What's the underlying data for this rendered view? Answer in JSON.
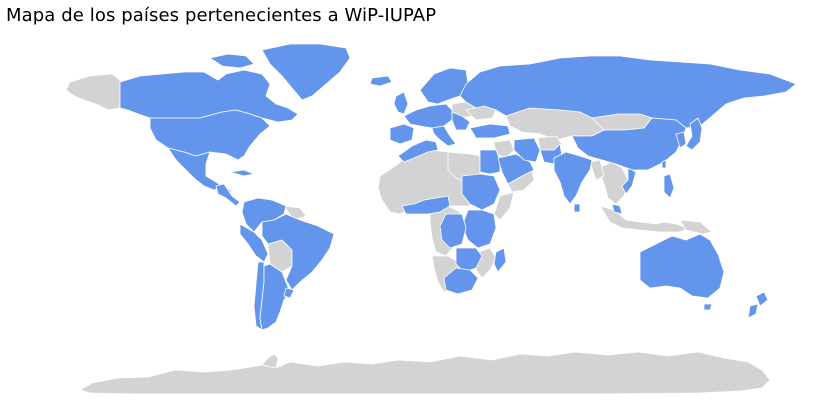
{
  "title": "Mapa de los países pertenecientes a WiP-IUPAP",
  "colors": {
    "member": "#6495ED",
    "non_member": "#D3D3D3",
    "border": "#FFFFFF",
    "background": "#FFFFFF"
  },
  "legend": "none",
  "map_data": {
    "type": "choropleth-world",
    "categories": [
      "member",
      "non_member"
    ],
    "member_regions": [
      "Canada",
      "United States",
      "Mexico",
      "Greenland",
      "Guatemala",
      "Honduras",
      "Costa Rica",
      "Panama",
      "Colombia",
      "Venezuela",
      "Ecuador",
      "Peru",
      "Brazil",
      "Argentina",
      "Chile",
      "Uruguay",
      "Cuba",
      "Iceland",
      "Ireland",
      "United Kingdom",
      "France",
      "Spain",
      "Portugal",
      "Germany",
      "Italy",
      "Poland",
      "Netherlands",
      "Belgium",
      "Switzerland",
      "Austria",
      "Czech Republic",
      "Sweden",
      "Norway",
      "Finland",
      "Greece",
      "Serbia",
      "Romania",
      "Hungary",
      "Russia",
      "Turkey",
      "Israel",
      "Egypt",
      "Saudi Arabia",
      "Iran",
      "Pakistan",
      "India",
      "Bangladesh",
      "Nepal",
      "Sri Lanka",
      "China",
      "Japan",
      "South Korea",
      "Taiwan",
      "Vietnam",
      "Philippines",
      "Malaysia",
      "Australia",
      "New Zealand",
      "Morocco",
      "Tunisia",
      "Algeria",
      "Ghana",
      "Nigeria",
      "Cameroon",
      "Sudan",
      "Ethiopia",
      "Kenya",
      "Uganda",
      "Rwanda",
      "Tanzania",
      "DR Congo",
      "Zambia",
      "Zimbabwe",
      "Malawi",
      "Botswana",
      "South Africa",
      "Madagascar"
    ]
  }
}
